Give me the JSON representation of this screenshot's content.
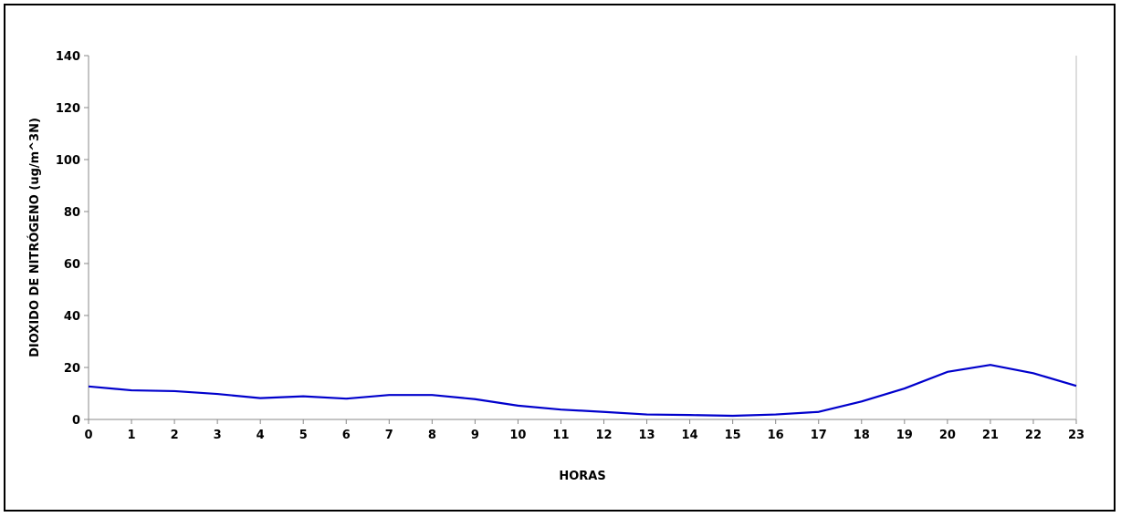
{
  "chart_data": {
    "type": "line",
    "title": "",
    "xlabel": "HORAS",
    "ylabel": "DIOXIDO DE NITRÓGENO (ug/m^3N)",
    "x": [
      0,
      1,
      2,
      3,
      4,
      5,
      6,
      7,
      8,
      9,
      10,
      11,
      12,
      13,
      14,
      15,
      16,
      17,
      18,
      19,
      20,
      21,
      22,
      23
    ],
    "xlim": [
      0,
      23
    ],
    "ylim": [
      0,
      140
    ],
    "yticks": [
      0,
      20,
      40,
      60,
      80,
      100,
      120,
      140
    ],
    "grid": false,
    "legend": "none",
    "series": [
      {
        "color": "#0000cc",
        "values": [
          12.7,
          11.2,
          10.9,
          9.8,
          8.2,
          8.9,
          8.0,
          9.4,
          9.4,
          7.8,
          5.3,
          3.8,
          2.9,
          1.9,
          1.7,
          1.4,
          1.9,
          2.9,
          6.9,
          11.9,
          18.3,
          21.0,
          17.8,
          12.9
        ]
      }
    ]
  }
}
